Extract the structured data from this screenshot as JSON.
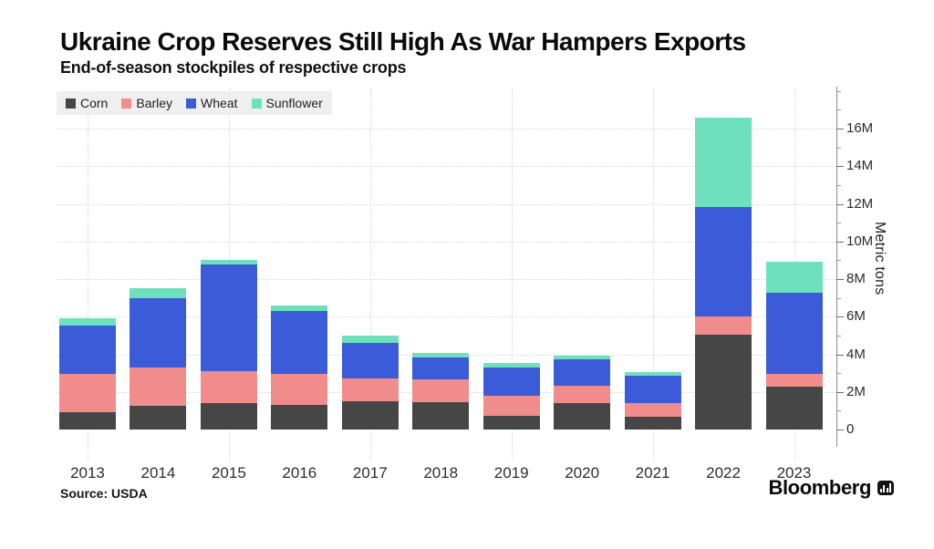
{
  "title": "Ukraine Crop Reserves Still High As War Hampers Exports",
  "subtitle": "End-of-season stockpiles of respective crops",
  "footer": {
    "source": "Source: USDA",
    "brand": "Bloomberg"
  },
  "colors": {
    "corn": "#464646",
    "barley": "#F08C8C",
    "wheat": "#3B5BD9",
    "sunflower": "#6FE0BD",
    "grid": "#d7d7d7",
    "legend_background": "#efefef"
  },
  "chart_data": {
    "type": "bar",
    "stacked": true,
    "title": "Ukraine Crop Reserves Still High As War Hampers Exports",
    "subtitle": "End-of-season stockpiles of respective crops",
    "xlabel": "",
    "ylabel": "Metric tons",
    "unit": "million metric tons",
    "legend_position": "top-left",
    "grid": "dotted",
    "ylim": [
      0,
      18.2
    ],
    "categories": [
      "2013",
      "2014",
      "2015",
      "2016",
      "2017",
      "2018",
      "2019",
      "2020",
      "2021",
      "2022",
      "2023"
    ],
    "series": [
      {
        "name": "Corn",
        "color": "#464646",
        "values": [
          0.9,
          1.25,
          1.4,
          1.3,
          1.5,
          1.45,
          0.75,
          1.4,
          0.7,
          5.05,
          2.3
        ]
      },
      {
        "name": "Barley",
        "color": "#F08C8C",
        "values": [
          2.05,
          2.05,
          1.7,
          1.65,
          1.2,
          1.2,
          1.05,
          0.95,
          0.7,
          0.95,
          0.65
        ]
      },
      {
        "name": "Wheat",
        "color": "#3B5BD9",
        "values": [
          2.6,
          3.7,
          5.7,
          3.35,
          1.9,
          1.2,
          1.5,
          1.4,
          1.45,
          5.85,
          4.3
        ]
      },
      {
        "name": "Sunflower",
        "color": "#6FE0BD",
        "values": [
          0.35,
          0.5,
          0.2,
          0.3,
          0.4,
          0.2,
          0.25,
          0.2,
          0.2,
          4.75,
          1.65
        ]
      }
    ],
    "totals": [
      5.9,
      7.5,
      9.0,
      6.6,
      5.0,
      4.05,
      3.55,
      3.95,
      3.05,
      16.6,
      8.9
    ],
    "yticks_major": [
      {
        "value": 0,
        "label": "0"
      },
      {
        "value": 2,
        "label": "2M"
      },
      {
        "value": 4,
        "label": "4M"
      },
      {
        "value": 6,
        "label": "6M"
      },
      {
        "value": 8,
        "label": "8M"
      },
      {
        "value": 10,
        "label": "10M"
      },
      {
        "value": 12,
        "label": "12M"
      },
      {
        "value": 14,
        "label": "14M"
      },
      {
        "value": 16,
        "label": "16M"
      }
    ],
    "yticks_minor": [
      1,
      3,
      5,
      7,
      9,
      11,
      13,
      15,
      17,
      18
    ],
    "gridlines_h_values": [
      2,
      4,
      6,
      8,
      10,
      12,
      14,
      16
    ],
    "gridlines_v_category_indices": [
      0,
      2,
      4,
      6,
      8,
      10
    ]
  }
}
